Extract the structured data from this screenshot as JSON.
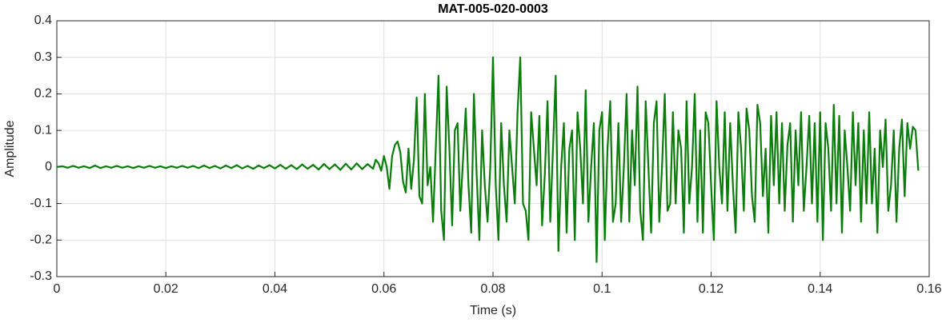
{
  "chart_data": {
    "type": "line",
    "title": "MAT-005-020-0003",
    "xlabel": "Time (s)",
    "ylabel": "Amplitude",
    "xlim": [
      0,
      0.16
    ],
    "ylim": [
      -0.3,
      0.4
    ],
    "xticks": [
      0,
      0.02,
      0.04,
      0.06,
      0.08,
      0.1,
      0.12,
      0.14,
      0.16
    ],
    "yticks": [
      -0.3,
      -0.2,
      -0.1,
      0,
      0.1,
      0.2,
      0.3,
      0.4
    ],
    "grid": true,
    "x": [
      0,
      0.001,
      0.002,
      0.003,
      0.004,
      0.005,
      0.006,
      0.007,
      0.008,
      0.009,
      0.01,
      0.011,
      0.012,
      0.013,
      0.014,
      0.015,
      0.016,
      0.017,
      0.018,
      0.019,
      0.02,
      0.021,
      0.022,
      0.023,
      0.024,
      0.025,
      0.026,
      0.027,
      0.028,
      0.029,
      0.03,
      0.031,
      0.032,
      0.033,
      0.034,
      0.035,
      0.036,
      0.037,
      0.038,
      0.039,
      0.04,
      0.041,
      0.042,
      0.043,
      0.044,
      0.045,
      0.046,
      0.047,
      0.048,
      0.049,
      0.05,
      0.051,
      0.052,
      0.053,
      0.054,
      0.055,
      0.056,
      0.057,
      0.058,
      0.0585,
      0.059,
      0.0595,
      0.06,
      0.0605,
      0.061,
      0.0615,
      0.062,
      0.0625,
      0.063,
      0.0635,
      0.064,
      0.0645,
      0.065,
      0.0655,
      0.066,
      0.0665,
      0.067,
      0.0675,
      0.068,
      0.0685,
      0.069,
      0.0695,
      0.07,
      0.0705,
      0.071,
      0.0715,
      0.072,
      0.0725,
      0.073,
      0.0735,
      0.074,
      0.0745,
      0.075,
      0.0755,
      0.076,
      0.0765,
      0.077,
      0.0775,
      0.078,
      0.0785,
      0.079,
      0.0795,
      0.08,
      0.0805,
      0.081,
      0.0815,
      0.082,
      0.0825,
      0.083,
      0.0835,
      0.084,
      0.0845,
      0.085,
      0.0855,
      0.086,
      0.0865,
      0.087,
      0.0875,
      0.088,
      0.0885,
      0.089,
      0.0895,
      0.09,
      0.0905,
      0.091,
      0.0915,
      0.092,
      0.0925,
      0.093,
      0.0935,
      0.094,
      0.0945,
      0.095,
      0.0955,
      0.096,
      0.0965,
      0.097,
      0.0975,
      0.098,
      0.0985,
      0.099,
      0.0995,
      0.1,
      0.1005,
      0.101,
      0.1015,
      0.102,
      0.1025,
      0.103,
      0.1035,
      0.104,
      0.1045,
      0.105,
      0.1055,
      0.106,
      0.1065,
      0.107,
      0.1075,
      0.108,
      0.1085,
      0.109,
      0.1095,
      0.11,
      0.1105,
      0.111,
      0.1115,
      0.112,
      0.1125,
      0.113,
      0.1135,
      0.114,
      0.1145,
      0.115,
      0.1155,
      0.116,
      0.1165,
      0.117,
      0.1175,
      0.118,
      0.1185,
      0.119,
      0.1195,
      0.12,
      0.1205,
      0.121,
      0.1215,
      0.122,
      0.1225,
      0.123,
      0.1235,
      0.124,
      0.1245,
      0.125,
      0.1255,
      0.126,
      0.1265,
      0.127,
      0.1275,
      0.128,
      0.1285,
      0.129,
      0.1295,
      0.13,
      0.1305,
      0.131,
      0.1315,
      0.132,
      0.1325,
      0.133,
      0.1335,
      0.134,
      0.1345,
      0.135,
      0.1355,
      0.136,
      0.1365,
      0.137,
      0.1375,
      0.138,
      0.1385,
      0.139,
      0.1395,
      0.14,
      0.1405,
      0.141,
      0.1415,
      0.142,
      0.1425,
      0.143,
      0.1435,
      0.144,
      0.1445,
      0.145,
      0.1455,
      0.146,
      0.1465,
      0.147,
      0.1475,
      0.148,
      0.1485,
      0.149,
      0.1495,
      0.15,
      0.1505,
      0.151,
      0.1515,
      0.152,
      0.1525,
      0.153,
      0.1535,
      0.154,
      0.1545,
      0.155,
      0.1555,
      0.156,
      0.1565,
      0.157,
      0.1575,
      0.158
    ],
    "series": [
      {
        "name": "Amplitude",
        "color": "#0a7d0a",
        "values": [
          0,
          0.002,
          -0.002,
          0.003,
          -0.002,
          0.002,
          -0.003,
          0.004,
          -0.003,
          0.002,
          -0.002,
          0.003,
          -0.002,
          0.002,
          -0.003,
          0.002,
          -0.002,
          0.003,
          -0.002,
          0.002,
          -0.003,
          0.002,
          -0.002,
          0.003,
          -0.002,
          0.003,
          -0.003,
          0.004,
          -0.003,
          0.003,
          -0.004,
          0.004,
          -0.003,
          0.005,
          -0.004,
          0.003,
          -0.005,
          0.004,
          -0.003,
          0.005,
          -0.004,
          0.006,
          -0.005,
          0.005,
          -0.006,
          0.007,
          -0.005,
          0.006,
          -0.007,
          0.008,
          -0.006,
          0.007,
          -0.008,
          0.009,
          -0.007,
          0.01,
          -0.006,
          0.008,
          -0.005,
          0.02,
          0.01,
          -0.01,
          0.03,
          0.0,
          -0.06,
          0.03,
          0.06,
          0.07,
          0.04,
          -0.04,
          -0.07,
          0.05,
          -0.06,
          0.02,
          0.19,
          -0.08,
          -0.1,
          0.2,
          -0.05,
          0.0,
          -0.15,
          0.05,
          0.25,
          -0.12,
          -0.2,
          0.22,
          0.05,
          -0.16,
          0.1,
          0.12,
          -0.12,
          0.02,
          0.16,
          -0.05,
          -0.18,
          0.2,
          -0.02,
          -0.2,
          0.1,
          -0.05,
          -0.15,
          0.0,
          0.3,
          -0.05,
          -0.2,
          0.12,
          -0.05,
          -0.15,
          0.1,
          0.0,
          -0.1,
          0.15,
          0.3,
          -0.1,
          -0.12,
          -0.2,
          0.15,
          0.05,
          -0.05,
          0.14,
          -0.16,
          -0.02,
          0.18,
          -0.15,
          0.05,
          0.25,
          -0.23,
          0.0,
          0.12,
          -0.18,
          0.05,
          0.1,
          -0.2,
          0.15,
          0.05,
          -0.1,
          0.21,
          -0.15,
          0.0,
          0.12,
          -0.26,
          0.1,
          0.15,
          -0.2,
          0.05,
          0.18,
          -0.15,
          -0.1,
          0.12,
          -0.15,
          0.0,
          0.2,
          -0.15,
          0.1,
          -0.05,
          0.22,
          -0.12,
          -0.2,
          0.18,
          0.0,
          -0.18,
          0.12,
          0.18,
          -0.15,
          0.0,
          0.2,
          -0.12,
          -0.1,
          0.15,
          -0.1,
          0.1,
          0.05,
          -0.18,
          0.18,
          -0.1,
          0.0,
          0.2,
          -0.15,
          0.1,
          -0.18,
          0.15,
          0.12,
          -0.05,
          -0.2,
          0.18,
          0.0,
          -0.1,
          0.15,
          -0.12,
          0.12,
          -0.05,
          -0.18,
          0.15,
          0.05,
          -0.12,
          0.16,
          0.1,
          -0.08,
          -0.15,
          0.17,
          0.12,
          -0.08,
          0.05,
          -0.18,
          0.14,
          -0.05,
          0.15,
          -0.1,
          0.12,
          -0.12,
          0.06,
          0.12,
          -0.15,
          0.1,
          -0.05,
          0.15,
          -0.12,
          0.0,
          0.14,
          -0.1,
          0.12,
          -0.15,
          0.15,
          -0.2,
          0.12,
          0.05,
          -0.12,
          0.17,
          -0.1,
          0.14,
          -0.18,
          0.1,
          0.0,
          -0.12,
          0.15,
          -0.05,
          0.12,
          -0.15,
          0.1,
          -0.1,
          0.15,
          -0.1,
          0.05,
          -0.18,
          0.1,
          0.0,
          0.13,
          -0.12,
          -0.05,
          0.1,
          -0.15,
          0.05,
          0.13,
          -0.08,
          0.12,
          0.05,
          0.11,
          0.1,
          -0.01
        ]
      }
    ]
  }
}
